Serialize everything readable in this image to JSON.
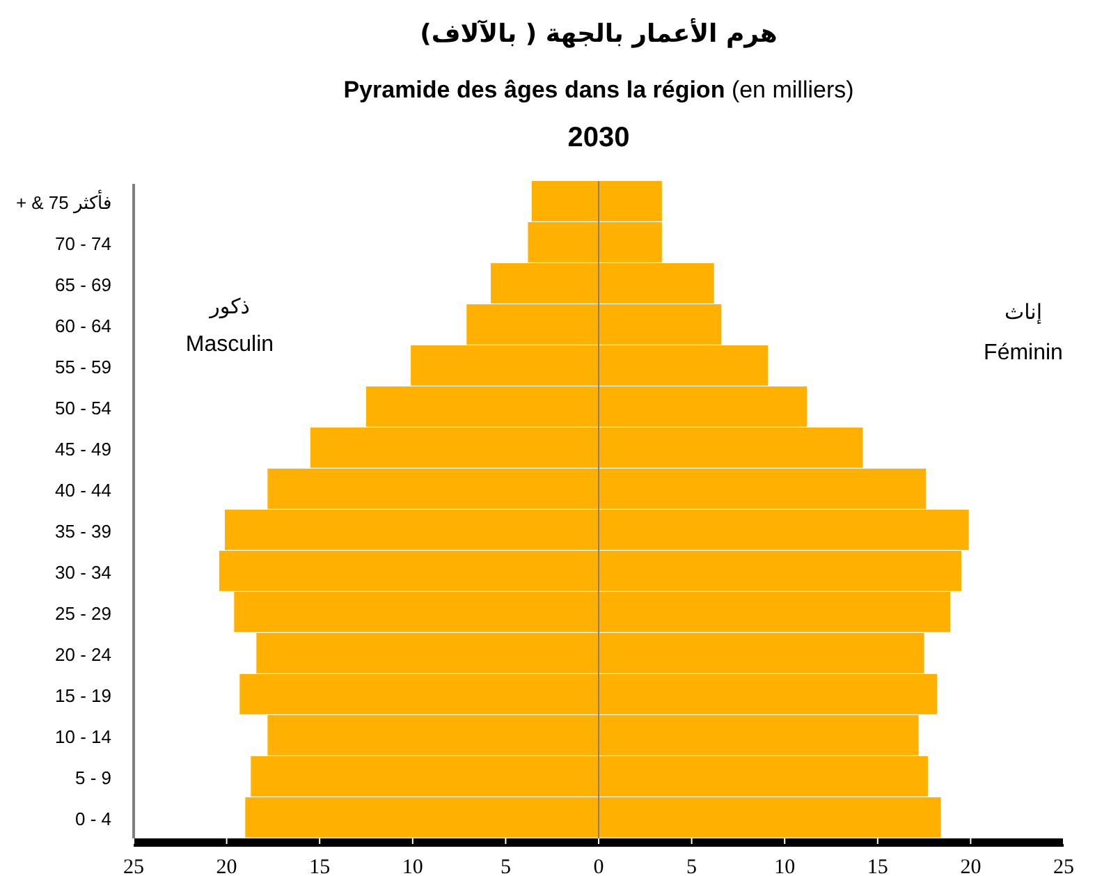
{
  "chart_data": {
    "type": "bar",
    "orientation": "horizontal",
    "stacked": true,
    "title": "هرم الأعمار بالجهة ( بالآلاف)",
    "subtitle": "**Pyramide des âges dans la région** (en milliers)",
    "annotations": [
      "2030",
      "ذكور",
      "Masculin",
      "إناث",
      "Féminin"
    ],
    "categories": [
      "+ & 75 فأكثر",
      "70 - 74",
      "65 - 69",
      "60 - 64",
      "55 - 59",
      "50 - 54",
      "45 - 49",
      "40 - 44",
      "35 - 39",
      "30 - 34",
      "25 - 29",
      "20 - 24",
      "15 - 19",
      "10 - 14",
      "5 - 9",
      "0 - 4"
    ],
    "series": [
      {
        "color": "#ffb000",
        "values": [
          -3.6,
          -3.8,
          -5.8,
          -7.1,
          -10.1,
          -12.5,
          -15.5,
          -17.8,
          -20.1,
          -20.4,
          -19.6,
          -18.4,
          -19.3,
          -17.8,
          -18.7,
          -19.0
        ]
      },
      {
        "color": "#ffb000",
        "values": [
          3.4,
          3.4,
          6.2,
          6.6,
          9.1,
          11.2,
          14.2,
          17.6,
          19.9,
          19.5,
          18.9,
          17.5,
          18.2,
          17.2,
          17.7,
          18.4
        ]
      }
    ],
    "xlim": [
      -25,
      25
    ],
    "xticks": [
      {
        "value": -25,
        "label": "25"
      },
      {
        "value": -20,
        "label": "20"
      },
      {
        "value": -15,
        "label": "15"
      },
      {
        "value": -10,
        "label": "10"
      },
      {
        "value": -5,
        "label": "5"
      },
      0,
      5,
      10,
      15,
      20,
      25
    ],
    "ref_lines": [
      {
        "axis": "x",
        "value": 0,
        "color": "#808080"
      }
    ],
    "grid": false
  }
}
